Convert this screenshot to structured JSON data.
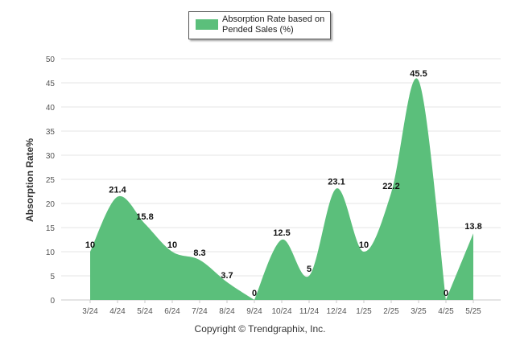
{
  "chart_data": {
    "type": "area",
    "categories": [
      "3/24",
      "4/24",
      "5/24",
      "6/24",
      "7/24",
      "8/24",
      "9/24",
      "10/24",
      "11/24",
      "12/24",
      "1/25",
      "2/25",
      "3/25",
      "4/25",
      "5/25"
    ],
    "series": [
      {
        "name": "Absorption Rate based on Pended Sales (%)",
        "values": [
          10,
          21.4,
          15.8,
          10,
          8.3,
          3.7,
          0,
          12.5,
          5,
          23.1,
          10,
          22.2,
          45.5,
          0,
          13.8
        ],
        "labels": [
          "10",
          "21.4",
          "15.8",
          "10",
          "8.3",
          "3.7",
          "0",
          "12.5",
          "5",
          "23.1",
          "10",
          "22.2",
          "45.5",
          "0",
          "13.8"
        ]
      }
    ],
    "ylabel": "Absorption Rate%",
    "xlabel": "",
    "ylim": [
      0,
      50
    ],
    "yticks": [
      "0",
      "5",
      "10",
      "15",
      "20",
      "25",
      "30",
      "35",
      "40",
      "45",
      "50"
    ],
    "grid": true,
    "legend_position": "top-center",
    "color": "#5BBF7B"
  },
  "legend": {
    "label": "Absorption Rate based on Pended Sales (%)"
  },
  "footer": {
    "copyright": "Copyright © Trendgraphix, Inc."
  }
}
